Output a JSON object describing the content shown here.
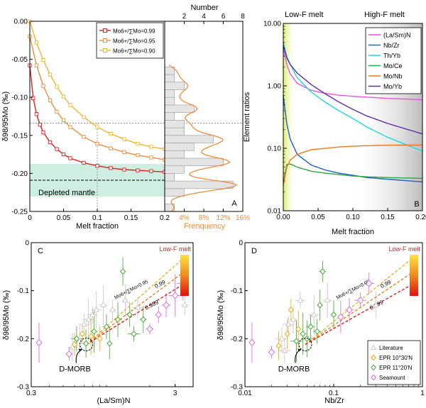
{
  "chart_data": [
    {
      "panel": "A",
      "type": "line",
      "xlabel": "Melt fraction",
      "ylabel": "δ98/95Mo (‰)",
      "xlim": [
        0,
        0.2
      ],
      "ylim": [
        -0.25,
        0.0
      ],
      "xticks": [
        "0",
        "0.05",
        "0.1",
        "0.15",
        "0.2"
      ],
      "yticks": [
        "0.00",
        "-0.05",
        "-0.10",
        "-0.15",
        "-0.20",
        "-0.25"
      ],
      "annotation": "Depleted mantle",
      "depleted_mantle_band": [
        -0.226,
        -0.187
      ],
      "depleted_mantle_line": -0.209,
      "series": [
        {
          "name": "Mo6+/∑Mo=0.99",
          "color": "#e02020",
          "x": [
            0.0,
            0.005,
            0.01,
            0.015,
            0.02,
            0.03,
            0.04,
            0.05,
            0.06,
            0.08,
            0.1,
            0.12,
            0.14,
            0.16,
            0.18,
            0.2
          ],
          "y": [
            -0.058,
            -0.101,
            -0.122,
            -0.136,
            -0.146,
            -0.159,
            -0.168,
            -0.175,
            -0.18,
            -0.186,
            -0.19,
            -0.193,
            -0.195,
            -0.196,
            -0.197,
            -0.198
          ]
        },
        {
          "name": "Mo6+/∑Mo=0.95",
          "color": "#f08c3c",
          "x": [
            0.0,
            0.01,
            0.02,
            0.03,
            0.04,
            0.05,
            0.06,
            0.08,
            0.1,
            0.12,
            0.14,
            0.16,
            0.18,
            0.2
          ],
          "y": [
            -0.02,
            -0.058,
            -0.085,
            -0.104,
            -0.119,
            -0.13,
            -0.139,
            -0.152,
            -0.161,
            -0.167,
            -0.172,
            -0.176,
            -0.179,
            -0.182
          ]
        },
        {
          "name": "Mo6+/∑Mo=0.90",
          "color": "#f2b630",
          "x": [
            0.0,
            0.01,
            0.02,
            0.03,
            0.04,
            0.05,
            0.06,
            0.08,
            0.1,
            0.12,
            0.14,
            0.16,
            0.18,
            0.2
          ],
          "y": [
            0.0,
            -0.028,
            -0.051,
            -0.07,
            -0.086,
            -0.099,
            -0.11,
            -0.126,
            -0.139,
            -0.148,
            -0.155,
            -0.161,
            -0.165,
            -0.168
          ]
        }
      ],
      "guide": {
        "x": 0.1,
        "y": -0.134
      }
    },
    {
      "panel": "A-histogram",
      "type": "bar",
      "xlabel": "Frenquency",
      "x2label": "Number",
      "x2ticks": [
        "2",
        "4",
        "6",
        "8"
      ],
      "xticks": [
        "4%",
        "8%",
        "12%",
        "16%"
      ],
      "bins_y": [
        -0.245,
        -0.235,
        -0.225,
        -0.215,
        -0.205,
        -0.195,
        -0.185,
        -0.175,
        -0.165,
        -0.155,
        -0.145,
        -0.135,
        -0.125,
        -0.115,
        -0.105,
        -0.095,
        -0.085,
        -0.075,
        -0.065
      ],
      "counts": [
        1,
        0,
        2,
        7,
        1,
        2,
        6,
        2,
        3,
        5,
        2,
        2,
        1,
        3,
        1,
        1,
        2,
        1,
        1
      ]
    },
    {
      "panel": "B",
      "type": "line",
      "xlabel": "Melt fraction",
      "ylabel": "Element ratios",
      "xlim": [
        0,
        0.2
      ],
      "ylim": [
        0.01,
        10.0
      ],
      "yscale": "log",
      "xticks": [
        "0.00",
        "0.05",
        "0.10",
        "0.15",
        "0.20"
      ],
      "yticks": [
        "10.00",
        "1.00",
        "0.10",
        "0.01"
      ],
      "header_left": "Low-F melt",
      "header_right": "High-F melt",
      "series": [
        {
          "name": "(La/Sm)N",
          "color": "#e854e0",
          "x": [
            0.0,
            0.005,
            0.01,
            0.02,
            0.04,
            0.06,
            0.08,
            0.1,
            0.12,
            0.15,
            0.2
          ],
          "y": [
            4.0,
            2.2,
            1.55,
            1.1,
            0.85,
            0.76,
            0.71,
            0.68,
            0.66,
            0.63,
            0.6
          ]
        },
        {
          "name": "Nb/Zr",
          "color": "#2060c0",
          "x": [
            0.0,
            0.005,
            0.01,
            0.02,
            0.04,
            0.06,
            0.08,
            0.1,
            0.12,
            0.15,
            0.2
          ],
          "y": [
            0.7,
            0.25,
            0.14,
            0.08,
            0.054,
            0.045,
            0.04,
            0.037,
            0.034,
            0.032,
            0.029
          ]
        },
        {
          "name": "Th/Yb",
          "color": "#20d8e0",
          "x": [
            0.0,
            0.005,
            0.01,
            0.02,
            0.04,
            0.06,
            0.08,
            0.1,
            0.12,
            0.15,
            0.2
          ],
          "y": [
            5.0,
            3.0,
            2.2,
            1.35,
            0.8,
            0.55,
            0.4,
            0.3,
            0.22,
            0.15,
            0.09
          ]
        },
        {
          "name": "Mo/Ce",
          "color": "#2ca83c",
          "x": [
            0.0,
            0.005,
            0.01,
            0.02,
            0.04,
            0.06,
            0.08,
            0.1,
            0.12,
            0.15,
            0.2
          ],
          "y": [
            0.028,
            0.055,
            0.056,
            0.05,
            0.043,
            0.04,
            0.038,
            0.036,
            0.035,
            0.034,
            0.033
          ]
        },
        {
          "name": "Mo/Nb",
          "color": "#f07820",
          "x": [
            0.0,
            0.005,
            0.01,
            0.02,
            0.04,
            0.06,
            0.08,
            0.1,
            0.12,
            0.15,
            0.2
          ],
          "y": [
            0.025,
            0.05,
            0.065,
            0.08,
            0.095,
            0.1,
            0.105,
            0.108,
            0.11,
            0.112,
            0.113
          ]
        },
        {
          "name": "Mo/Yb",
          "color": "#6030a0",
          "x": [
            0.0,
            0.005,
            0.01,
            0.02,
            0.04,
            0.06,
            0.08,
            0.1,
            0.12,
            0.15,
            0.2
          ],
          "y": [
            4.5,
            2.8,
            2.2,
            1.6,
            1.05,
            0.75,
            0.55,
            0.42,
            0.33,
            0.25,
            0.17
          ]
        }
      ]
    },
    {
      "panel": "C",
      "type": "scatter",
      "xlabel": "(La/Sm)N",
      "ylabel": "δ98/95Mo (‰)",
      "xscale": "log",
      "xlim": [
        0.3,
        4.0
      ],
      "ylim": [
        -0.3,
        0.0
      ],
      "xticks": [
        "0.3",
        "3"
      ],
      "yticks": [
        "0",
        "-0.1",
        "-0.2",
        "-0.3"
      ],
      "colorbar_label": "Low-F melt",
      "model_labels": [
        "Mo6+/∑Mo=0.95",
        "0.99",
        "0.999"
      ],
      "callout": "D-MORB",
      "points": [
        {
          "x": 0.34,
          "y": -0.208,
          "group": "seamount"
        },
        {
          "x": 0.55,
          "y": -0.232,
          "group": "seamount"
        },
        {
          "x": 0.58,
          "y": -0.218,
          "group": "literature"
        },
        {
          "x": 0.6,
          "y": -0.212,
          "group": "epr10"
        },
        {
          "x": 0.62,
          "y": -0.2,
          "group": "epr11"
        },
        {
          "x": 0.65,
          "y": -0.205,
          "group": "literature"
        },
        {
          "x": 0.68,
          "y": -0.19,
          "group": "epr10"
        },
        {
          "x": 0.7,
          "y": -0.17,
          "group": "literature"
        },
        {
          "x": 0.72,
          "y": -0.21,
          "group": "epr11"
        },
        {
          "x": 0.75,
          "y": -0.16,
          "group": "literature"
        },
        {
          "x": 0.78,
          "y": -0.195,
          "group": "epr10"
        },
        {
          "x": 0.8,
          "y": -0.15,
          "group": "literature"
        },
        {
          "x": 0.82,
          "y": -0.185,
          "group": "epr11"
        },
        {
          "x": 0.85,
          "y": -0.14,
          "group": "literature"
        },
        {
          "x": 0.9,
          "y": -0.2,
          "group": "epr10"
        },
        {
          "x": 0.95,
          "y": -0.13,
          "group": "literature"
        },
        {
          "x": 1.0,
          "y": -0.175,
          "group": "epr11"
        },
        {
          "x": 1.05,
          "y": -0.21,
          "group": "epr11"
        },
        {
          "x": 1.1,
          "y": -0.14,
          "group": "literature"
        },
        {
          "x": 1.2,
          "y": -0.16,
          "group": "epr11"
        },
        {
          "x": 1.3,
          "y": -0.06,
          "group": "epr11"
        },
        {
          "x": 1.35,
          "y": -0.12,
          "group": "literature"
        },
        {
          "x": 1.45,
          "y": -0.15,
          "group": "epr11"
        },
        {
          "x": 1.55,
          "y": -0.19,
          "group": "epr11"
        },
        {
          "x": 1.65,
          "y": -0.135,
          "group": "literature"
        },
        {
          "x": 1.8,
          "y": -0.16,
          "group": "epr11"
        },
        {
          "x": 2.0,
          "y": -0.18,
          "group": "seamount"
        },
        {
          "x": 2.3,
          "y": -0.15,
          "group": "seamount"
        },
        {
          "x": 2.6,
          "y": -0.13,
          "group": "seamount"
        },
        {
          "x": 3.0,
          "y": -0.11,
          "group": "seamount"
        },
        {
          "x": 3.4,
          "y": -0.085,
          "group": "seamount"
        },
        {
          "x": 3.5,
          "y": -0.13,
          "group": "literature"
        }
      ]
    },
    {
      "panel": "D",
      "type": "scatter",
      "xlabel": "Nb/Zr",
      "ylabel": "δ98/95Mo (‰)",
      "xscale": "log",
      "xlim": [
        0.01,
        1.0
      ],
      "ylim": [
        -0.3,
        0.0
      ],
      "xticks": [
        "0.01",
        "0.1",
        "1"
      ],
      "yticks": [
        "0",
        "-0.1",
        "-0.2",
        "-0.3"
      ],
      "colorbar_label": "Low-F melt",
      "model_labels": [
        "Mo6+/∑Mo=0.95",
        "0.99",
        "0.999"
      ],
      "callout": "D-MORB",
      "legend": [
        "Literature",
        "EPR 10°30'N",
        "EPR 11°20'N",
        "Seamount"
      ],
      "points": [
        {
          "x": 0.012,
          "y": -0.208,
          "group": "seamount"
        },
        {
          "x": 0.02,
          "y": -0.228,
          "group": "seamount"
        },
        {
          "x": 0.024,
          "y": -0.215,
          "group": "epr10"
        },
        {
          "x": 0.026,
          "y": -0.2,
          "group": "literature"
        },
        {
          "x": 0.028,
          "y": -0.225,
          "group": "literature"
        },
        {
          "x": 0.03,
          "y": -0.19,
          "group": "epr10"
        },
        {
          "x": 0.031,
          "y": -0.17,
          "group": "literature"
        },
        {
          "x": 0.033,
          "y": -0.14,
          "group": "epr10"
        },
        {
          "x": 0.035,
          "y": -0.16,
          "group": "literature"
        },
        {
          "x": 0.038,
          "y": -0.205,
          "group": "epr11"
        },
        {
          "x": 0.04,
          "y": -0.18,
          "group": "epr10"
        },
        {
          "x": 0.042,
          "y": -0.12,
          "group": "literature"
        },
        {
          "x": 0.045,
          "y": -0.19,
          "group": "epr11"
        },
        {
          "x": 0.05,
          "y": -0.2,
          "group": "epr11"
        },
        {
          "x": 0.055,
          "y": -0.175,
          "group": "epr11"
        },
        {
          "x": 0.06,
          "y": -0.15,
          "group": "literature"
        },
        {
          "x": 0.065,
          "y": -0.185,
          "group": "epr11"
        },
        {
          "x": 0.07,
          "y": -0.13,
          "group": "epr11"
        },
        {
          "x": 0.075,
          "y": -0.06,
          "group": "epr11"
        },
        {
          "x": 0.085,
          "y": -0.12,
          "group": "literature"
        },
        {
          "x": 0.1,
          "y": -0.15,
          "group": "epr11"
        },
        {
          "x": 0.12,
          "y": -0.155,
          "group": "seamount"
        },
        {
          "x": 0.15,
          "y": -0.14,
          "group": "seamount"
        },
        {
          "x": 0.2,
          "y": -0.12,
          "group": "seamount"
        },
        {
          "x": 0.25,
          "y": -0.085,
          "group": "seamount"
        },
        {
          "x": 0.3,
          "y": -0.13,
          "group": "literature"
        }
      ]
    }
  ],
  "panel_letters": [
    "A",
    "B",
    "C",
    "D"
  ],
  "colors": {
    "literature": "#c8c8c8",
    "epr10": "#f0b020",
    "epr11": "#50b040",
    "seamount": "#e070e0",
    "hist_bar": "#e4e4e4",
    "hist_line": "#f08c3c",
    "band": "#cdeee0",
    "freq_axis": "#f08c3c"
  }
}
